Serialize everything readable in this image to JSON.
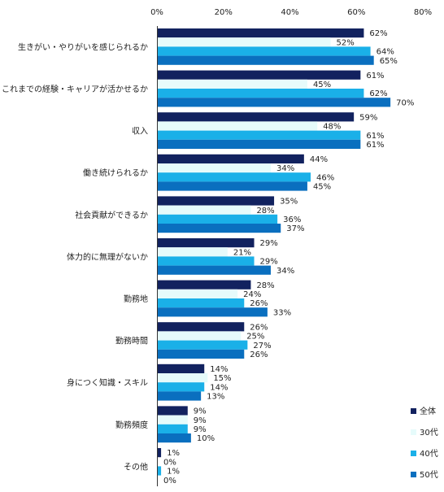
{
  "chart_data": {
    "type": "bar",
    "orientation": "horizontal",
    "categories": [
      "生きがい・やりがいを感じられるか",
      "これまでの経験・キャリアが活かせるか",
      "収入",
      "働き続けられるか",
      "社会貢献ができるか",
      "体力的に無理がないか",
      "勤務地",
      "勤務時間",
      "身につく知識・スキル",
      "勤務頻度",
      "その他"
    ],
    "series": [
      {
        "name": "全体",
        "color": "#12225f",
        "values": [
          62,
          61,
          59,
          44,
          35,
          29,
          28,
          26,
          14,
          9,
          1
        ]
      },
      {
        "name": "30代",
        "color": "#e6fbfb",
        "values": [
          52,
          45,
          48,
          34,
          28,
          21,
          24,
          25,
          15,
          9,
          0
        ]
      },
      {
        "name": "40代",
        "color": "#1ab0e8",
        "values": [
          64,
          62,
          61,
          46,
          36,
          29,
          26,
          27,
          14,
          9,
          1
        ]
      },
      {
        "name": "50代",
        "color": "#0a6fbf",
        "values": [
          65,
          70,
          61,
          45,
          37,
          34,
          33,
          26,
          13,
          10,
          0
        ]
      }
    ],
    "value_suffix": "%",
    "xlim": [
      0,
      80
    ],
    "xticks": [
      "0%",
      "20%",
      "40%",
      "60%",
      "80%"
    ],
    "xtick_values": [
      0,
      20,
      40,
      60,
      80
    ],
    "legend_position": "bottom-right",
    "grid": false
  }
}
